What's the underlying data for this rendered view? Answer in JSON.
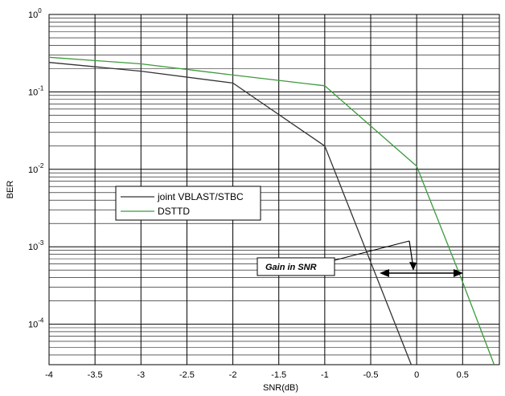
{
  "chart_data": {
    "type": "line",
    "xlabel": "SNR(dB)",
    "ylabel": "BER",
    "x_scale": "linear",
    "y_scale": "log",
    "xlim": [
      -4,
      0.9
    ],
    "ylim": [
      3e-05,
      1
    ],
    "x_ticks": [
      "-4",
      "-3.5",
      "-3",
      "-2.5",
      "-2",
      "-1.5",
      "-1",
      "-0.5",
      "0",
      "0.5"
    ],
    "x_tick_values": [
      -4,
      -3.5,
      -3,
      -2.5,
      -2,
      -1.5,
      -1,
      -0.5,
      0,
      0.5
    ],
    "y_ticks": [
      {
        "value": 1,
        "base": "10",
        "exp": "0"
      },
      {
        "value": 0.1,
        "base": "10",
        "exp": "-1"
      },
      {
        "value": 0.01,
        "base": "10",
        "exp": "-2"
      },
      {
        "value": 0.001,
        "base": "10",
        "exp": "-3"
      },
      {
        "value": 0.0001,
        "base": "10",
        "exp": "-4"
      }
    ],
    "grid": true,
    "legend_position": "middle-left",
    "series": [
      {
        "name": "joint VBLAST/STBC",
        "color": "#333333",
        "x": [
          -4,
          -3,
          -2,
          -1,
          0
        ],
        "y": [
          0.24,
          0.185,
          0.13,
          0.02,
          2e-05
        ]
      },
      {
        "name": "DSTTD",
        "color": "#3c9a3c",
        "x": [
          -4,
          -3,
          -2,
          -1,
          0,
          0.5,
          0.9
        ],
        "y": [
          0.28,
          0.23,
          0.165,
          0.12,
          0.011,
          0.00035,
          2e-05
        ]
      }
    ],
    "annotation": {
      "text": "Gain in SNR",
      "arrow_from_x": -0.45,
      "arrow_to_x": 0.5,
      "level_y": 0.00035
    }
  }
}
